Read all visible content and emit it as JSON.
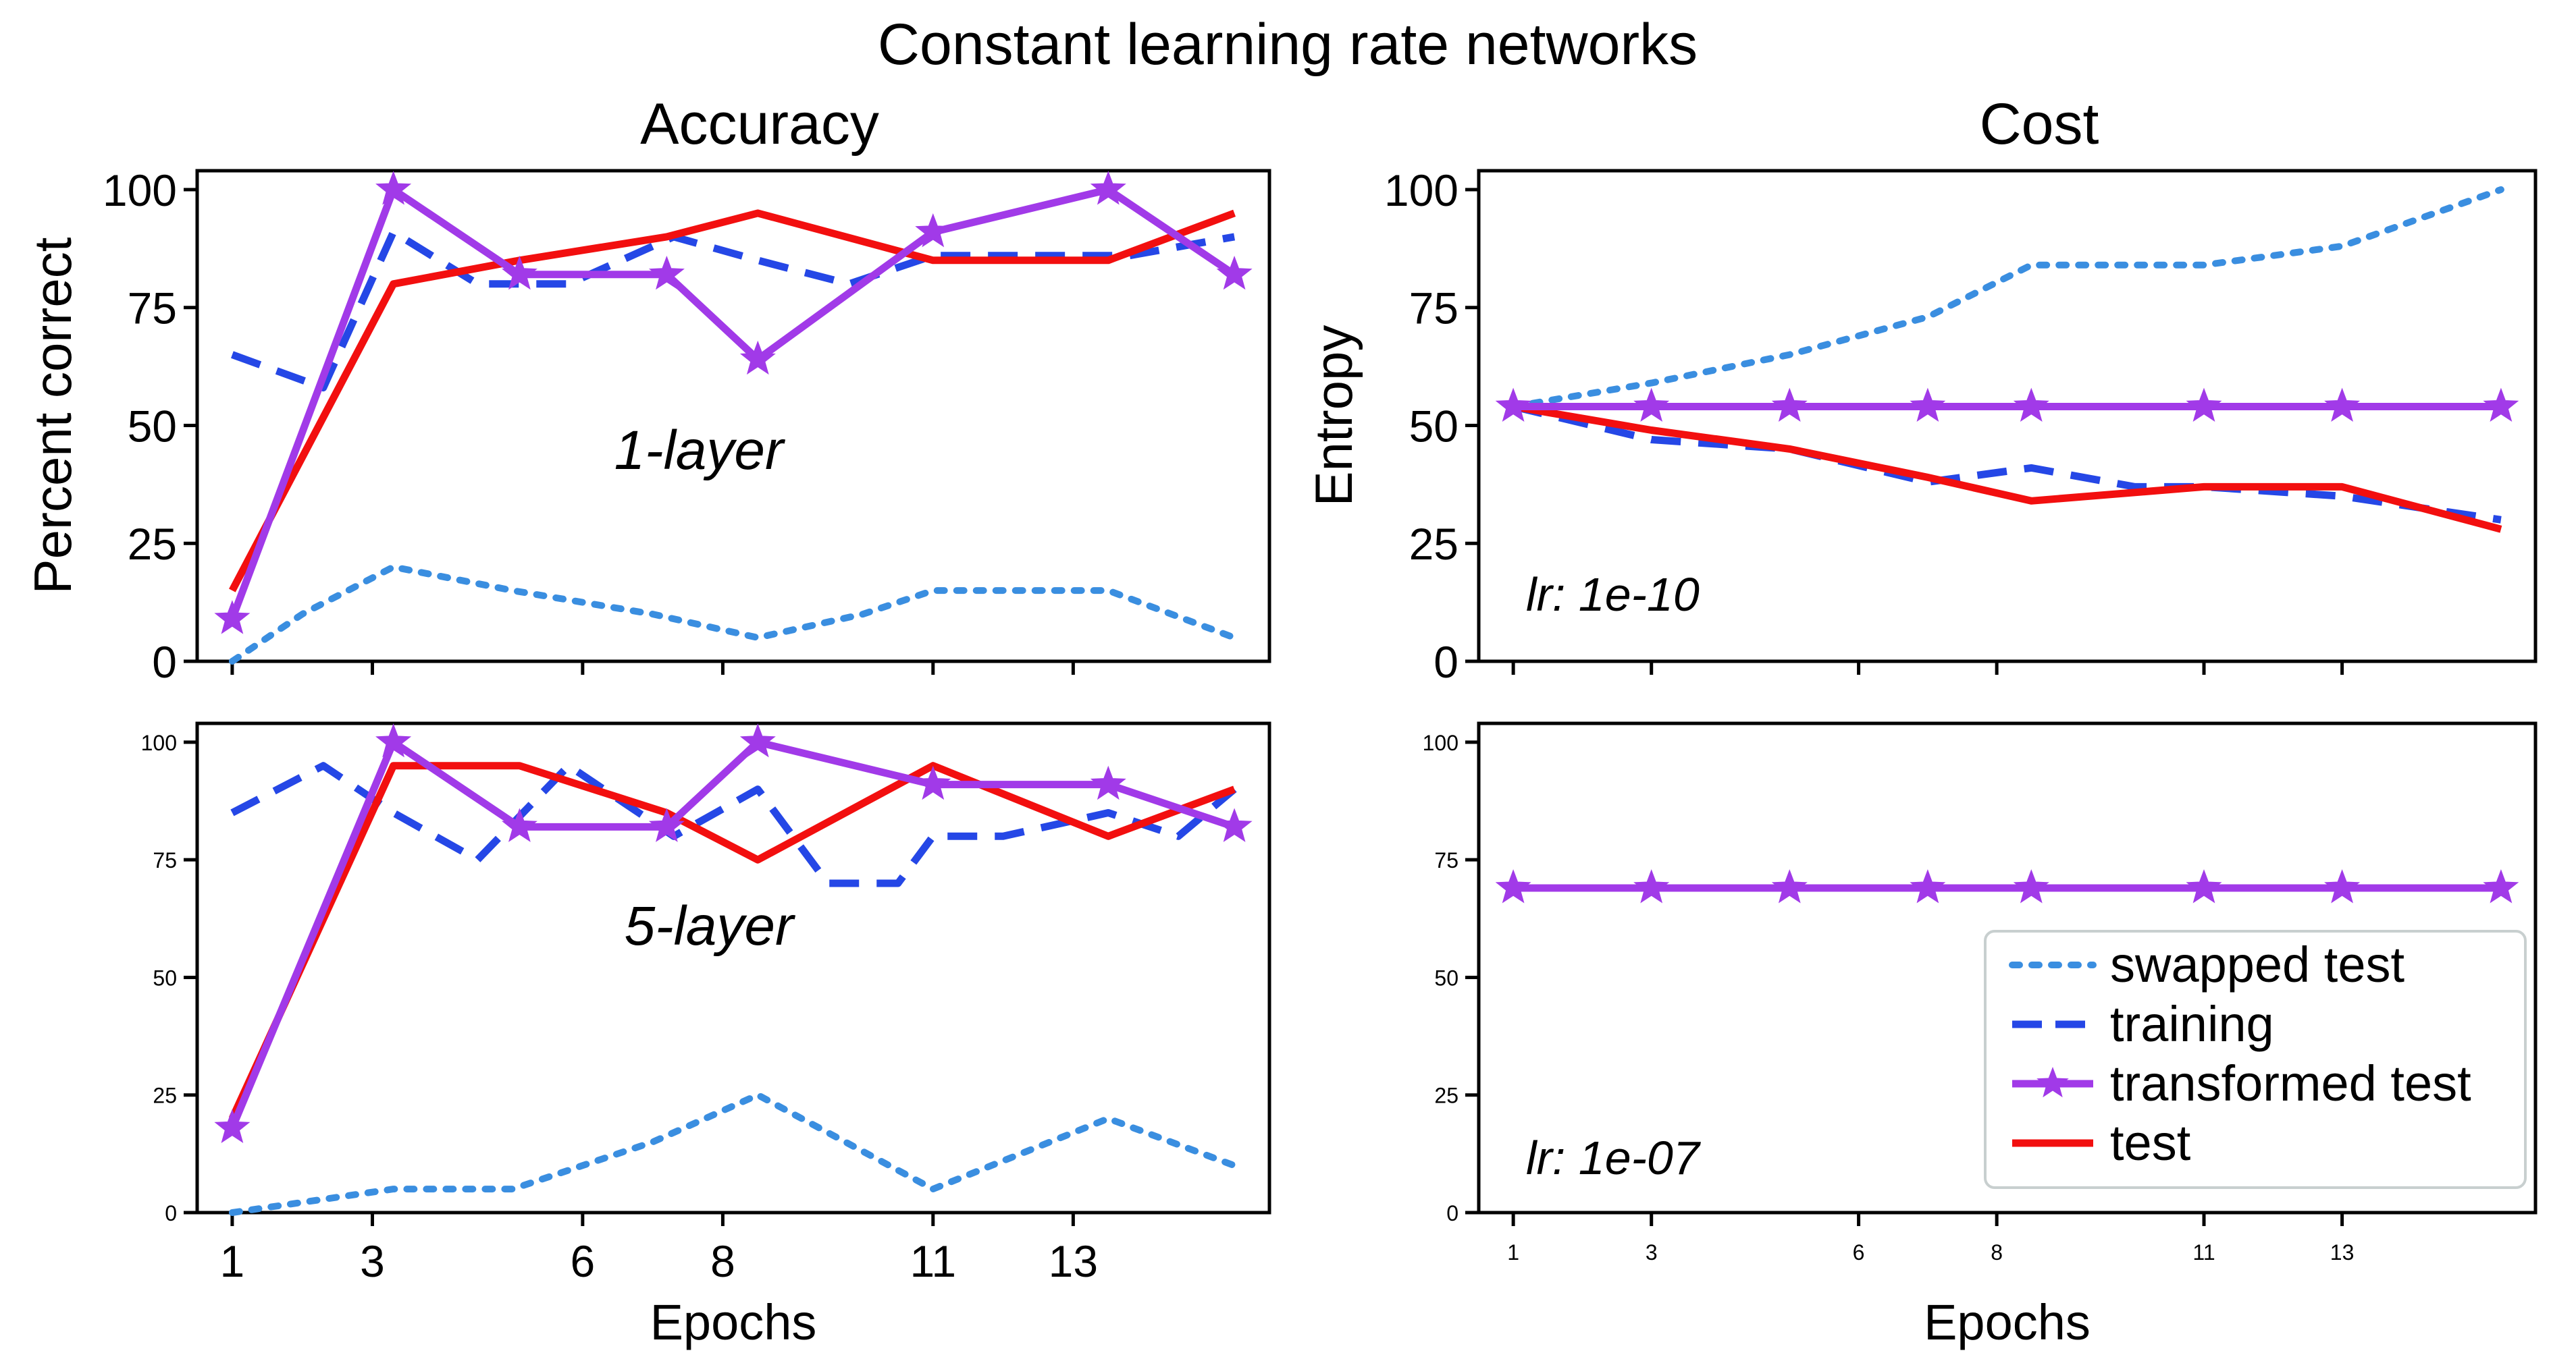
{
  "figure": {
    "title": "Constant learning rate networks",
    "column_titles": [
      "Accuracy",
      "Cost"
    ]
  },
  "legend": {
    "placement": "lower-right of bottom-right panel",
    "entries": [
      {
        "label": "swapped test",
        "series": "swapped"
      },
      {
        "label": "training",
        "series": "training"
      },
      {
        "label": "transformed test",
        "series": "transformed"
      },
      {
        "label": "test",
        "series": "test"
      }
    ]
  },
  "styles": {
    "swapped": {
      "color": "#3a8ee0",
      "dash": "dotted"
    },
    "training": {
      "color": "#2547e6",
      "dash": "dashed"
    },
    "transformed": {
      "color": "#a13ae8",
      "dash": "solid",
      "marker": "star"
    },
    "test": {
      "color": "#f20f0f",
      "dash": "solid"
    }
  },
  "chart_data": [
    {
      "id": "acc1",
      "type": "line",
      "row": 0,
      "col": 0,
      "title": "Accuracy",
      "ylabel": "Percent correct",
      "xlabel": "",
      "annotation": "1-layer",
      "xlim": [
        0.5,
        15.8
      ],
      "ylim": [
        0,
        104
      ],
      "yticks": [
        0,
        25,
        50,
        75,
        100
      ],
      "tick_size": "big",
      "xticks": [
        1,
        3,
        6,
        8,
        11,
        13
      ],
      "xtick_labels": [],
      "series": [
        {
          "key": "training",
          "x": [
            1,
            2.3,
            3.3,
            4.5,
            5.8,
            7.3,
            8.5,
            9.8,
            11,
            12.5,
            13.8,
            15.3
          ],
          "y": [
            65,
            58,
            91,
            80,
            80,
            90,
            85,
            80,
            86,
            86,
            86,
            90
          ]
        },
        {
          "key": "swapped",
          "x": [
            1,
            2,
            3.3,
            5,
            7,
            8.5,
            10,
            11,
            13.5,
            15.3
          ],
          "y": [
            0,
            10,
            20,
            15,
            10,
            5,
            10,
            15,
            15,
            5
          ]
        },
        {
          "key": "transformed",
          "x": [
            1,
            3.3,
            5.1,
            7.2,
            8.5,
            11,
            13.5,
            15.3
          ],
          "y": [
            9,
            100,
            82,
            82,
            64,
            91,
            100,
            82
          ]
        },
        {
          "key": "test",
          "x": [
            1,
            3.3,
            5.1,
            7.2,
            8.5,
            11,
            13.5,
            15.3
          ],
          "y": [
            15,
            80,
            85,
            90,
            95,
            85,
            85,
            95
          ]
        }
      ]
    },
    {
      "id": "acc5",
      "type": "line",
      "row": 1,
      "col": 0,
      "xlabel": "Epochs",
      "ylabel": "",
      "annotation": "5-layer",
      "xlim": [
        0.5,
        15.8
      ],
      "ylim": [
        0,
        104
      ],
      "yticks": [
        0,
        25,
        50,
        75,
        100
      ],
      "tick_size": "small",
      "xticks": [
        1,
        3,
        6,
        8,
        11,
        13
      ],
      "xtick_labels": [
        "1",
        "3",
        "6",
        "8",
        "11",
        "13"
      ],
      "xtick_size": "big",
      "series": [
        {
          "key": "training",
          "x": [
            1,
            2.3,
            3.3,
            4.5,
            5.8,
            7.3,
            8.5,
            9.5,
            10.5,
            11,
            12,
            13.5,
            14.5,
            15.3
          ],
          "y": [
            85,
            95,
            85,
            75,
            95,
            80,
            90,
            70,
            70,
            80,
            80,
            85,
            80,
            90
          ]
        },
        {
          "key": "swapped",
          "x": [
            1,
            3.3,
            5,
            7,
            8.5,
            11,
            13.5,
            15.3
          ],
          "y": [
            0,
            5,
            5,
            15,
            25,
            5,
            20,
            10
          ]
        },
        {
          "key": "transformed",
          "x": [
            1,
            3.3,
            5.1,
            7.2,
            8.5,
            11,
            13.5,
            15.3
          ],
          "y": [
            18,
            100,
            82,
            82,
            100,
            91,
            91,
            82
          ]
        },
        {
          "key": "test",
          "x": [
            1,
            3.3,
            5.1,
            7.2,
            8.5,
            11,
            13.5,
            15.3
          ],
          "y": [
            20,
            95,
            95,
            85,
            75,
            95,
            80,
            90
          ]
        }
      ]
    },
    {
      "id": "cost1",
      "type": "line",
      "row": 0,
      "col": 1,
      "title": "Cost",
      "ylabel": "Entropy",
      "xlabel": "",
      "annotation": "lr: 1e-10",
      "xlim": [
        0.5,
        15.8
      ],
      "ylim": [
        0,
        104
      ],
      "yticks": [
        0,
        25,
        50,
        75,
        100
      ],
      "tick_size": "big",
      "xticks": [
        1,
        3,
        6,
        8,
        11,
        13
      ],
      "xtick_labels": [],
      "series": [
        {
          "key": "swapped",
          "x": [
            1,
            3,
            5,
            7,
            8.5,
            11,
            13,
            15.3
          ],
          "y": [
            54,
            59,
            65,
            73,
            84,
            84,
            88,
            100
          ]
        },
        {
          "key": "training",
          "x": [
            1,
            3,
            5,
            7,
            8.5,
            10,
            11,
            13,
            15.3
          ],
          "y": [
            54,
            47,
            45,
            38,
            41,
            37,
            37,
            35,
            30
          ]
        },
        {
          "key": "transformed",
          "x": [
            1,
            3,
            5,
            7,
            8.5,
            11,
            13,
            15.3
          ],
          "y": [
            54,
            54,
            54,
            54,
            54,
            54,
            54,
            54
          ]
        },
        {
          "key": "test",
          "x": [
            1,
            3,
            5,
            7,
            8.5,
            11,
            13,
            15.3
          ],
          "y": [
            54,
            49,
            45,
            39,
            34,
            37,
            37,
            28
          ]
        }
      ]
    },
    {
      "id": "cost5",
      "type": "line",
      "row": 1,
      "col": 1,
      "xlabel": "Epochs",
      "ylabel": "",
      "annotation": "lr: 1e-07",
      "xlim": [
        0.5,
        15.8
      ],
      "ylim": [
        0,
        104
      ],
      "yticks": [
        0,
        25,
        50,
        75,
        100
      ],
      "tick_size": "small",
      "xticks": [
        1,
        3,
        6,
        8,
        11,
        13
      ],
      "xtick_labels": [
        "1",
        "3",
        "6",
        "8",
        "11",
        "13"
      ],
      "xtick_size": "small",
      "series": [
        {
          "key": "test",
          "x": [
            1,
            15.3
          ],
          "y": [
            69,
            69
          ]
        },
        {
          "key": "transformed",
          "x": [
            1,
            3,
            5,
            7,
            8.5,
            11,
            13,
            15.3
          ],
          "y": [
            69,
            69,
            69,
            69,
            69,
            69,
            69,
            69
          ]
        }
      ]
    }
  ]
}
